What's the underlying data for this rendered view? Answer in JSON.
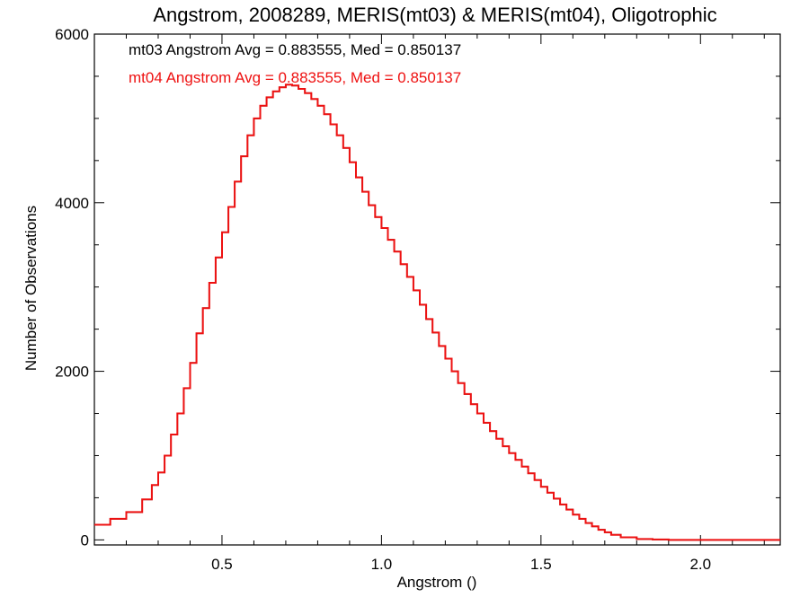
{
  "chart_data": {
    "type": "line",
    "title": "Angstrom, 2008289, MERIS(mt03) & MERIS(mt04), Oligotrophic",
    "xlabel": "Angstrom ()",
    "ylabel": "Number of Observations",
    "xlim": [
      0.1,
      2.25
    ],
    "ylim": [
      -60,
      6000
    ],
    "x_ticks": [
      {
        "value": 0.5,
        "label": "0.5"
      },
      {
        "value": 1.0,
        "label": "1.0"
      },
      {
        "value": 1.5,
        "label": "1.5"
      },
      {
        "value": 2.0,
        "label": "2.0"
      }
    ],
    "y_ticks": [
      {
        "value": 0,
        "label": "0"
      },
      {
        "value": 2000,
        "label": "2000"
      },
      {
        "value": 4000,
        "label": "4000"
      },
      {
        "value": 6000,
        "label": "6000"
      }
    ],
    "step": "histogram",
    "annotations": [
      {
        "text": "mt03 Angstrom Avg = 0.883555, Med = 0.850137",
        "color": "#000000"
      },
      {
        "text": "mt04 Angstrom Avg = 0.883555, Med = 0.850137",
        "color": "#ee1111"
      }
    ],
    "x": [
      0.1,
      0.15,
      0.2,
      0.25,
      0.28,
      0.3,
      0.32,
      0.34,
      0.36,
      0.38,
      0.4,
      0.42,
      0.44,
      0.46,
      0.48,
      0.5,
      0.52,
      0.54,
      0.56,
      0.58,
      0.6,
      0.62,
      0.64,
      0.66,
      0.68,
      0.7,
      0.72,
      0.74,
      0.76,
      0.78,
      0.8,
      0.82,
      0.84,
      0.86,
      0.88,
      0.9,
      0.92,
      0.94,
      0.96,
      0.98,
      1.0,
      1.02,
      1.04,
      1.06,
      1.08,
      1.1,
      1.12,
      1.14,
      1.16,
      1.18,
      1.2,
      1.22,
      1.24,
      1.26,
      1.28,
      1.3,
      1.32,
      1.34,
      1.36,
      1.38,
      1.4,
      1.42,
      1.44,
      1.46,
      1.48,
      1.5,
      1.52,
      1.54,
      1.56,
      1.58,
      1.6,
      1.62,
      1.64,
      1.66,
      1.68,
      1.7,
      1.72,
      1.75,
      1.8,
      1.85,
      1.9,
      1.95,
      2.0,
      2.05,
      2.1,
      2.15,
      2.2,
      2.25
    ],
    "series": [
      {
        "name": "mt03",
        "color": "#000000",
        "values": [
          180,
          250,
          330,
          480,
          650,
          800,
          1000,
          1250,
          1500,
          1800,
          2100,
          2450,
          2750,
          3050,
          3350,
          3650,
          3950,
          4250,
          4550,
          4800,
          5000,
          5150,
          5250,
          5320,
          5370,
          5400,
          5390,
          5350,
          5300,
          5230,
          5150,
          5050,
          4930,
          4800,
          4650,
          4480,
          4300,
          4130,
          3970,
          3830,
          3700,
          3560,
          3420,
          3270,
          3120,
          2960,
          2790,
          2620,
          2460,
          2300,
          2150,
          2000,
          1860,
          1730,
          1610,
          1500,
          1390,
          1290,
          1200,
          1110,
          1030,
          950,
          870,
          790,
          710,
          630,
          560,
          490,
          420,
          360,
          300,
          250,
          200,
          160,
          120,
          90,
          60,
          30,
          10,
          5,
          0,
          0,
          0,
          0,
          0,
          0,
          0,
          0
        ]
      },
      {
        "name": "mt04",
        "color": "#ee1111",
        "values": [
          180,
          250,
          330,
          480,
          650,
          800,
          1000,
          1250,
          1500,
          1800,
          2100,
          2450,
          2750,
          3050,
          3350,
          3650,
          3950,
          4250,
          4550,
          4800,
          5000,
          5150,
          5250,
          5320,
          5370,
          5400,
          5390,
          5350,
          5300,
          5230,
          5150,
          5050,
          4930,
          4800,
          4650,
          4480,
          4300,
          4130,
          3970,
          3830,
          3700,
          3560,
          3420,
          3270,
          3120,
          2960,
          2790,
          2620,
          2460,
          2300,
          2150,
          2000,
          1860,
          1730,
          1610,
          1500,
          1390,
          1290,
          1200,
          1110,
          1030,
          950,
          870,
          790,
          710,
          630,
          560,
          490,
          420,
          360,
          300,
          250,
          200,
          160,
          120,
          90,
          60,
          30,
          10,
          5,
          0,
          0,
          0,
          0,
          0,
          0,
          0,
          0
        ]
      }
    ]
  }
}
